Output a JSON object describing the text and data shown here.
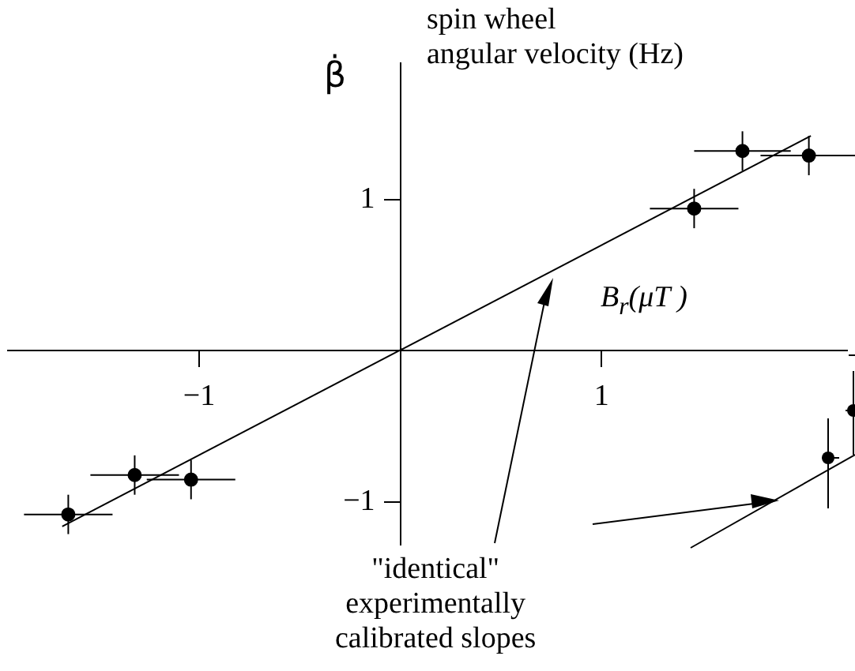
{
  "chart_data": {
    "type": "scatter",
    "xlabel": "B$_{r}$(μT )",
    "ylabel": "β̇",
    "annotations": [
      "spin wheel\nangular velocity (Hz)",
      "\"identical\"\nexperimentally\ncalibrated slopes"
    ],
    "xlim": [
      -1.95,
      2.22
    ],
    "ylim": [
      -1.28,
      1.9
    ],
    "xticks": [
      -1,
      1
    ],
    "yticks": [
      -1,
      1
    ],
    "grid": false,
    "legend": false,
    "marker": "circle",
    "series": [
      {
        "color": "#000000",
        "x": [
          -1.65,
          -1.32,
          -1.04,
          1.46,
          1.7,
          2.03
        ],
        "values": [
          -1.08,
          -0.82,
          -0.85,
          0.94,
          1.32,
          1.29
        ],
        "errors": [
          0.13,
          0.13,
          0.13,
          0.13,
          0.13,
          0.13
        ],
        "xerrors": [
          0.22,
          0.22,
          0.22,
          0.22,
          0.24,
          0.24
        ]
      },
      {
        "type": "line",
        "color": "#000000",
        "marker": "none",
        "line_style": "solid",
        "x": [
          -1.68,
          2.04
        ],
        "values": [
          -1.16,
          1.42
        ]
      }
    ]
  }
}
